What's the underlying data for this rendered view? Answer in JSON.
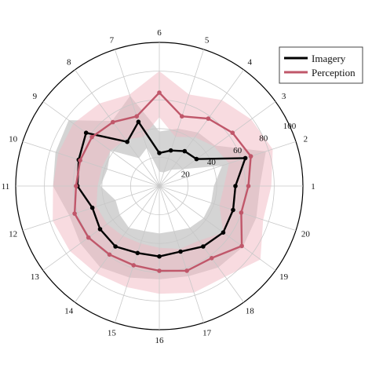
{
  "chart_data": {
    "type": "radar",
    "categories": [
      "1",
      "2",
      "3",
      "4",
      "5",
      "6",
      "7",
      "8",
      "9",
      "10",
      "11",
      "12",
      "13",
      "14",
      "15",
      "16",
      "17",
      "18",
      "19",
      "20"
    ],
    "rlim": [
      0,
      100
    ],
    "radial_ticks": [
      20,
      40,
      60,
      80,
      100
    ],
    "grid": true,
    "legend_position": "top-right",
    "series": [
      {
        "name": "Imagery",
        "color": "#000000",
        "band_color": "#b8b8b8",
        "values": [
          53,
          63,
          32,
          30,
          26,
          23,
          47,
          38,
          63,
          59,
          57,
          49,
          51,
          52,
          49,
          49,
          48,
          52,
          55,
          54
        ],
        "band_low": [
          38,
          46,
          20,
          14,
          10,
          10,
          28,
          24,
          42,
          38,
          41,
          32,
          34,
          36,
          33,
          33,
          33,
          36,
          38,
          38
        ],
        "band_high": [
          70,
          78,
          48,
          46,
          42,
          38,
          66,
          56,
          78,
          76,
          74,
          66,
          68,
          70,
          67,
          65,
          66,
          70,
          72,
          71
        ]
      },
      {
        "name": "Perception",
        "color": "#c0576a",
        "band_color": "#f2b8c2",
        "values": [
          62,
          67,
          63,
          58,
          51,
          65,
          51,
          55,
          58,
          58,
          58,
          62,
          61,
          59,
          58,
          59,
          62,
          62,
          71,
          60
        ],
        "band_low": [
          45,
          51,
          47,
          42,
          36,
          48,
          36,
          40,
          42,
          42,
          43,
          46,
          45,
          43,
          42,
          43,
          46,
          47,
          55,
          44
        ],
        "band_high": [
          78,
          83,
          79,
          74,
          67,
          80,
          67,
          71,
          74,
          74,
          74,
          78,
          77,
          75,
          74,
          75,
          78,
          78,
          87,
          76
        ]
      }
    ]
  }
}
